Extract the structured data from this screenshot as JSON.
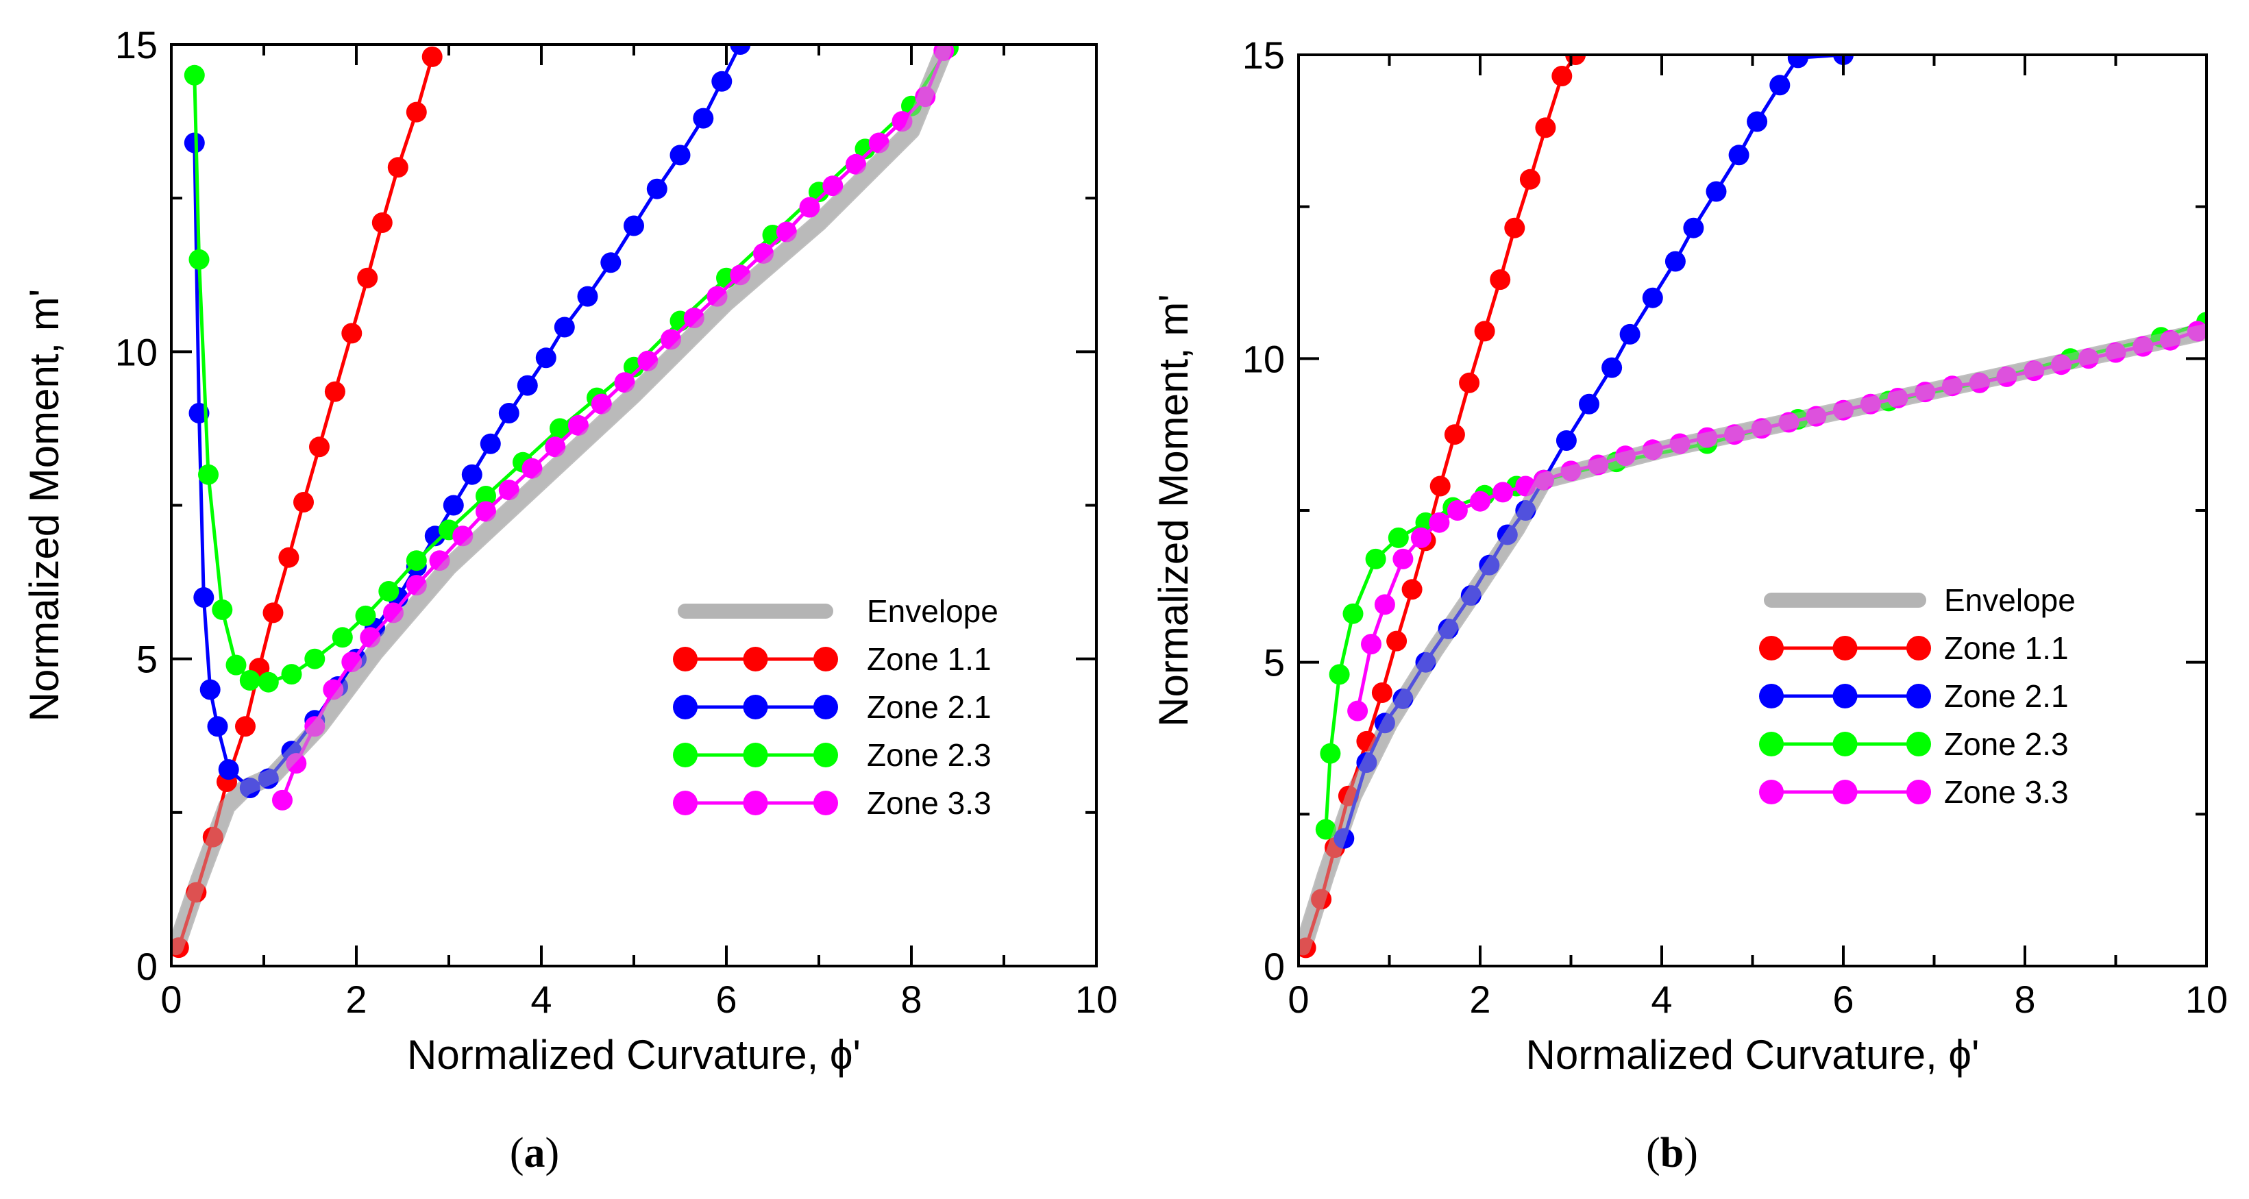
{
  "chart_data": [
    {
      "type": "line",
      "panel_label": "a",
      "xlabel": "Normalized Curvature, ϕ'",
      "ylabel": "Normalized Moment, m'",
      "xlim": [
        0,
        10
      ],
      "ylim": [
        0,
        15
      ],
      "xticks": [
        "0",
        "2",
        "4",
        "6",
        "8",
        "10"
      ],
      "yticks": [
        "0",
        "5",
        "10",
        "15"
      ],
      "legend": {
        "placement": "lower-right",
        "entries": [
          "Envelope",
          "Zone 1.1",
          "Zone 2.1",
          "Zone 2.3",
          "Zone 3.3"
        ]
      },
      "series": [
        {
          "name": "Envelope",
          "color": "#b4b4b4",
          "markers": false,
          "points": [
            [
              0.05,
              0.3
            ],
            [
              0.3,
              1.4
            ],
            [
              0.6,
              2.6
            ],
            [
              0.8,
              2.9
            ],
            [
              1.1,
              3.1
            ],
            [
              1.6,
              3.9
            ],
            [
              2.2,
              5.1
            ],
            [
              3.0,
              6.5
            ],
            [
              4.0,
              7.9
            ],
            [
              5.0,
              9.3
            ],
            [
              6.0,
              10.8
            ],
            [
              7.0,
              12.1
            ],
            [
              8.0,
              13.6
            ],
            [
              8.35,
              14.9
            ]
          ]
        },
        {
          "name": "Zone 1.1",
          "color": "#ff0000",
          "markers": true,
          "points": [
            [
              0.08,
              0.3
            ],
            [
              0.27,
              1.2
            ],
            [
              0.45,
              2.1
            ],
            [
              0.6,
              3.0
            ],
            [
              0.8,
              3.9
            ],
            [
              0.95,
              4.85
            ],
            [
              1.1,
              5.75
            ],
            [
              1.27,
              6.65
            ],
            [
              1.43,
              7.55
            ],
            [
              1.6,
              8.45
            ],
            [
              1.77,
              9.35
            ],
            [
              1.95,
              10.3
            ],
            [
              2.12,
              11.2
            ],
            [
              2.28,
              12.1
            ],
            [
              2.45,
              13.0
            ],
            [
              2.65,
              13.9
            ],
            [
              2.82,
              14.8
            ]
          ]
        },
        {
          "name": "Zone 2.1",
          "color": "#0000ff",
          "markers": true,
          "points": [
            [
              0.25,
              13.4
            ],
            [
              0.3,
              9.0
            ],
            [
              0.35,
              6.0
            ],
            [
              0.42,
              4.5
            ],
            [
              0.5,
              3.9
            ],
            [
              0.62,
              3.2
            ],
            [
              0.85,
              2.9
            ],
            [
              1.05,
              3.05
            ],
            [
              1.3,
              3.5
            ],
            [
              1.55,
              4.0
            ],
            [
              1.8,
              4.55
            ],
            [
              2.0,
              5.0
            ],
            [
              2.2,
              5.5
            ],
            [
              2.45,
              6.0
            ],
            [
              2.65,
              6.5
            ],
            [
              2.85,
              7.0
            ],
            [
              3.05,
              7.5
            ],
            [
              3.25,
              8.0
            ],
            [
              3.45,
              8.5
            ],
            [
              3.65,
              9.0
            ],
            [
              3.85,
              9.45
            ],
            [
              4.05,
              9.9
            ],
            [
              4.25,
              10.4
            ],
            [
              4.5,
              10.9
            ],
            [
              4.75,
              11.45
            ],
            [
              5.0,
              12.05
            ],
            [
              5.25,
              12.65
            ],
            [
              5.5,
              13.2
            ],
            [
              5.75,
              13.8
            ],
            [
              5.95,
              14.4
            ],
            [
              6.15,
              15.0
            ]
          ]
        },
        {
          "name": "Zone 2.3",
          "color": "#00ff00",
          "markers": true,
          "points": [
            [
              0.25,
              14.5
            ],
            [
              0.3,
              11.5
            ],
            [
              0.4,
              8.0
            ],
            [
              0.55,
              5.8
            ],
            [
              0.7,
              4.9
            ],
            [
              0.85,
              4.65
            ],
            [
              1.05,
              4.62
            ],
            [
              1.3,
              4.75
            ],
            [
              1.55,
              5.0
            ],
            [
              1.85,
              5.35
            ],
            [
              2.1,
              5.7
            ],
            [
              2.35,
              6.1
            ],
            [
              2.65,
              6.6
            ],
            [
              3.0,
              7.1
            ],
            [
              3.4,
              7.65
            ],
            [
              3.8,
              8.2
            ],
            [
              4.2,
              8.75
            ],
            [
              4.6,
              9.25
            ],
            [
              5.0,
              9.75
            ],
            [
              5.5,
              10.5
            ],
            [
              6.0,
              11.2
            ],
            [
              6.5,
              11.9
            ],
            [
              7.0,
              12.6
            ],
            [
              7.5,
              13.3
            ],
            [
              8.0,
              14.0
            ],
            [
              8.4,
              14.95
            ]
          ]
        },
        {
          "name": "Zone 3.3",
          "color": "#ff00ff",
          "markers": true,
          "points": [
            [
              1.2,
              2.7
            ],
            [
              1.35,
              3.3
            ],
            [
              1.55,
              3.9
            ],
            [
              1.75,
              4.5
            ],
            [
              1.95,
              4.95
            ],
            [
              2.15,
              5.35
            ],
            [
              2.4,
              5.75
            ],
            [
              2.65,
              6.2
            ],
            [
              2.9,
              6.6
            ],
            [
              3.15,
              7.0
            ],
            [
              3.4,
              7.4
            ],
            [
              3.65,
              7.75
            ],
            [
              3.9,
              8.1
            ],
            [
              4.15,
              8.45
            ],
            [
              4.4,
              8.8
            ],
            [
              4.65,
              9.15
            ],
            [
              4.9,
              9.5
            ],
            [
              5.15,
              9.85
            ],
            [
              5.4,
              10.2
            ],
            [
              5.65,
              10.55
            ],
            [
              5.9,
              10.9
            ],
            [
              6.15,
              11.25
            ],
            [
              6.4,
              11.6
            ],
            [
              6.65,
              11.95
            ],
            [
              6.9,
              12.35
            ],
            [
              7.15,
              12.7
            ],
            [
              7.4,
              13.05
            ],
            [
              7.65,
              13.4
            ],
            [
              7.9,
              13.75
            ],
            [
              8.15,
              14.15
            ],
            [
              8.35,
              14.9
            ]
          ]
        }
      ]
    },
    {
      "type": "line",
      "panel_label": "b",
      "xlabel": "Normalized Curvature, ϕ'",
      "ylabel": "Normalized Moment, m'",
      "xlim": [
        0,
        10
      ],
      "ylim": [
        0,
        15
      ],
      "xticks": [
        "0",
        "2",
        "4",
        "6",
        "8",
        "10"
      ],
      "yticks": [
        "0",
        "5",
        "10",
        "15"
      ],
      "legend": {
        "placement": "lower-right",
        "entries": [
          "Envelope",
          "Zone 1.1",
          "Zone 2.1",
          "Zone 2.3",
          "Zone 3.3"
        ]
      },
      "series": [
        {
          "name": "Envelope",
          "color": "#b4b4b4",
          "markers": false,
          "points": [
            [
              0.05,
              0.3
            ],
            [
              0.3,
              1.5
            ],
            [
              0.6,
              2.8
            ],
            [
              1.0,
              4.0
            ],
            [
              1.5,
              5.2
            ],
            [
              2.0,
              6.3
            ],
            [
              2.4,
              7.2
            ],
            [
              2.7,
              8.0
            ],
            [
              4.0,
              8.5
            ],
            [
              6.0,
              9.15
            ],
            [
              8.0,
              9.8
            ],
            [
              10.0,
              10.45
            ]
          ]
        },
        {
          "name": "Zone 1.1",
          "color": "#ff0000",
          "markers": true,
          "points": [
            [
              0.08,
              0.3
            ],
            [
              0.25,
              1.1
            ],
            [
              0.4,
              1.95
            ],
            [
              0.55,
              2.8
            ],
            [
              0.75,
              3.7
            ],
            [
              0.92,
              4.5
            ],
            [
              1.08,
              5.35
            ],
            [
              1.25,
              6.2
            ],
            [
              1.4,
              7.0
            ],
            [
              1.56,
              7.9
            ],
            [
              1.72,
              8.75
            ],
            [
              1.88,
              9.6
            ],
            [
              2.05,
              10.45
            ],
            [
              2.22,
              11.3
            ],
            [
              2.38,
              12.15
            ],
            [
              2.55,
              12.95
            ],
            [
              2.72,
              13.8
            ],
            [
              2.9,
              14.65
            ],
            [
              3.05,
              15.0
            ]
          ]
        },
        {
          "name": "Zone 2.1",
          "color": "#0000ff",
          "markers": true,
          "points": [
            [
              0.5,
              2.1
            ],
            [
              0.75,
              3.35
            ],
            [
              0.95,
              4.0
            ],
            [
              1.15,
              4.4
            ],
            [
              1.4,
              5.0
            ],
            [
              1.65,
              5.55
            ],
            [
              1.9,
              6.1
            ],
            [
              2.1,
              6.6
            ],
            [
              2.3,
              7.1
            ],
            [
              2.5,
              7.5
            ],
            [
              2.7,
              8.0
            ],
            [
              2.95,
              8.65
            ],
            [
              3.2,
              9.25
            ],
            [
              3.45,
              9.85
            ],
            [
              3.65,
              10.4
            ],
            [
              3.9,
              11.0
            ],
            [
              4.15,
              11.6
            ],
            [
              4.35,
              12.15
            ],
            [
              4.6,
              12.75
            ],
            [
              4.85,
              13.35
            ],
            [
              5.05,
              13.9
            ],
            [
              5.3,
              14.5
            ],
            [
              5.5,
              14.95
            ],
            [
              6.0,
              15.0
            ]
          ]
        },
        {
          "name": "Zone 2.3",
          "color": "#00ff00",
          "markers": true,
          "points": [
            [
              0.3,
              2.25
            ],
            [
              0.35,
              3.5
            ],
            [
              0.45,
              4.8
            ],
            [
              0.6,
              5.8
            ],
            [
              0.85,
              6.7
            ],
            [
              1.1,
              7.05
            ],
            [
              1.4,
              7.3
            ],
            [
              1.7,
              7.55
            ],
            [
              2.05,
              7.75
            ],
            [
              2.4,
              7.9
            ],
            [
              2.7,
              8.0
            ],
            [
              3.5,
              8.3
            ],
            [
              4.5,
              8.6
            ],
            [
              5.5,
              9.0
            ],
            [
              6.5,
              9.3
            ],
            [
              7.5,
              9.6
            ],
            [
              8.5,
              10.0
            ],
            [
              9.5,
              10.35
            ],
            [
              10.0,
              10.6
            ]
          ]
        },
        {
          "name": "Zone 3.3",
          "color": "#ff00ff",
          "markers": true,
          "points": [
            [
              0.65,
              4.2
            ],
            [
              0.8,
              5.3
            ],
            [
              0.95,
              5.95
            ],
            [
              1.15,
              6.7
            ],
            [
              1.35,
              7.05
            ],
            [
              1.55,
              7.3
            ],
            [
              1.75,
              7.5
            ],
            [
              2.0,
              7.65
            ],
            [
              2.25,
              7.8
            ],
            [
              2.5,
              7.9
            ],
            [
              2.7,
              8.0
            ],
            [
              3.0,
              8.15
            ],
            [
              3.3,
              8.25
            ],
            [
              3.6,
              8.4
            ],
            [
              3.9,
              8.5
            ],
            [
              4.2,
              8.6
            ],
            [
              4.5,
              8.7
            ],
            [
              4.8,
              8.75
            ],
            [
              5.1,
              8.85
            ],
            [
              5.4,
              8.95
            ],
            [
              5.7,
              9.05
            ],
            [
              6.0,
              9.15
            ],
            [
              6.3,
              9.25
            ],
            [
              6.6,
              9.35
            ],
            [
              6.9,
              9.45
            ],
            [
              7.2,
              9.55
            ],
            [
              7.5,
              9.6
            ],
            [
              7.8,
              9.7
            ],
            [
              8.1,
              9.8
            ],
            [
              8.4,
              9.9
            ],
            [
              8.7,
              10.0
            ],
            [
              9.0,
              10.1
            ],
            [
              9.3,
              10.2
            ],
            [
              9.6,
              10.3
            ],
            [
              9.9,
              10.45
            ]
          ]
        }
      ]
    }
  ]
}
